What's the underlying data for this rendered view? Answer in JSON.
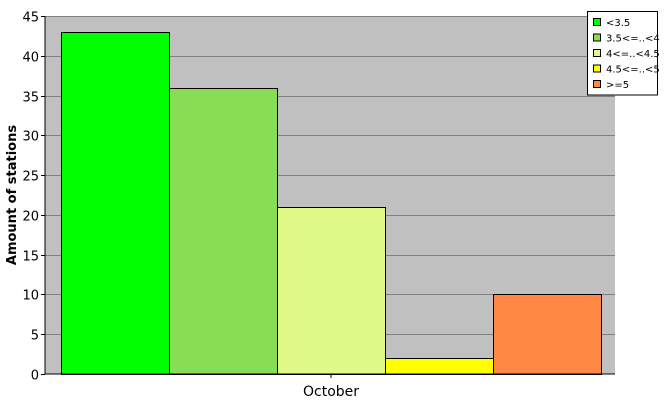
{
  "chart_data": {
    "type": "bar",
    "title": "",
    "xlabel": "",
    "ylabel": "Amount of stations",
    "categories": [
      "October"
    ],
    "series": [
      {
        "name": "<3.5",
        "values": [
          43
        ],
        "color": "#00ff00"
      },
      {
        "name": "3.5<=..<4",
        "values": [
          36
        ],
        "color": "#88dd55"
      },
      {
        "name": "4<=..<4.5",
        "values": [
          21
        ],
        "color": "#e0fa88"
      },
      {
        "name": "4.5<=..<5",
        "values": [
          2
        ],
        "color": "#ffff00"
      },
      {
        "name": ">=5",
        "values": [
          10
        ],
        "color": "#ff8844"
      }
    ],
    "ylim": [
      0,
      45
    ],
    "yticks": [
      "0",
      "5",
      "10",
      "15",
      "20",
      "25",
      "30",
      "35",
      "40",
      "45"
    ],
    "grid": true,
    "legend_position": "top-right",
    "background_color": "#c0c0c0"
  }
}
